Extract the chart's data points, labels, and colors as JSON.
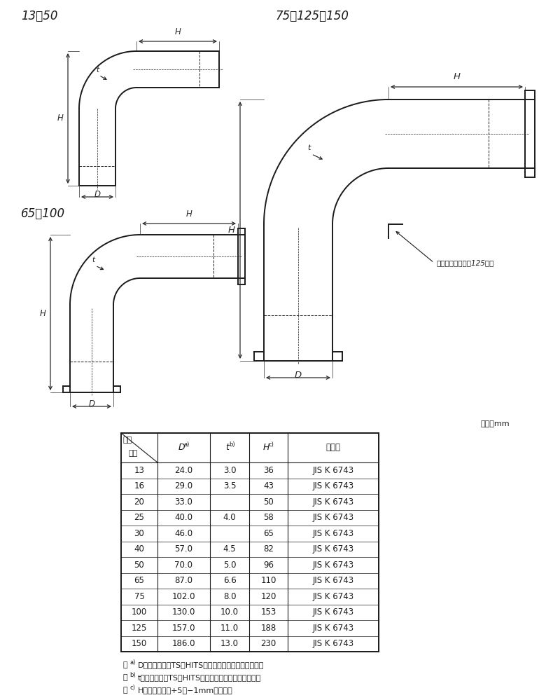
{
  "bg_color": "#ffffff",
  "line_color": "#1a1a1a",
  "table_data": {
    "rows": [
      [
        "13",
        "24.0",
        "3.0",
        "36",
        "JIS K 6743"
      ],
      [
        "16",
        "29.0",
        "3.5",
        "43",
        "JIS K 6743"
      ],
      [
        "20",
        "33.0",
        "",
        "50",
        "JIS K 6743"
      ],
      [
        "25",
        "40.0",
        "4.0",
        "58",
        "JIS K 6743"
      ],
      [
        "30",
        "46.0",
        "",
        "65",
        "JIS K 6743"
      ],
      [
        "40",
        "57.0",
        "4.5",
        "82",
        "JIS K 6743"
      ],
      [
        "50",
        "70.0",
        "5.0",
        "96",
        "JIS K 6743"
      ],
      [
        "65",
        "87.0",
        "6.6",
        "110",
        "JIS K 6743"
      ],
      [
        "75",
        "102.0",
        "8.0",
        "120",
        "JIS K 6743"
      ],
      [
        "100",
        "130.0",
        "10.0",
        "153",
        "JIS K 6743"
      ],
      [
        "125",
        "157.0",
        "11.0",
        "188",
        "JIS K 6743"
      ],
      [
        "150",
        "186.0",
        "13.0",
        "230",
        "JIS K 6743"
      ]
    ]
  },
  "notes": [
    [
      "注",
      "a)",
      "Dの許容差は、TS・HITS継手受口共通寸法図による。"
    ],
    [
      "注",
      "b)",
      "tの許容差は、TS・HITS継手受口共通寸法図による。"
    ],
    [
      "注",
      "c)",
      "Hの許容差は、+5／−1mmとする。"
    ]
  ],
  "label_13_50": "13～50",
  "label_65_100": "65・100",
  "label_75_125_150": "75・125・150",
  "corner_rib_note": "コーナーリブは、125のみ",
  "unit_text": "単位：mm",
  "header_kisho": "記号",
  "header_yobikei": "呂径",
  "header_D": "D",
  "header_t": "t",
  "header_H": "H",
  "header_kitaku": "規　格"
}
